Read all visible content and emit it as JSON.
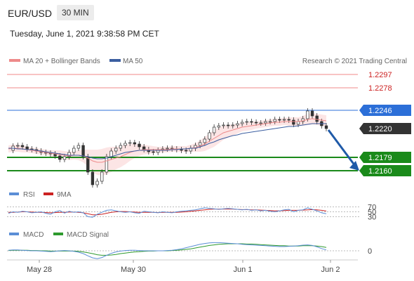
{
  "header": {
    "pair": "EUR/USD",
    "timeframe": "30 MIN",
    "timestamp": "Tuesday, June 1, 2021 9:38:58 PM CET"
  },
  "colors": {
    "ma20": "#ee8a8a",
    "ma50": "#3b5ea0",
    "band_fill": "#fbdede",
    "resistance": "#f08888",
    "resistance_label": "#cc2222",
    "pivot": "#2c6fd8",
    "support": "#1a8a1a",
    "arrow": "#1f5aa8",
    "candle": "#333333",
    "rsi": "#5b8ed6",
    "rsi_ma": "#cc2222",
    "macd": "#5b8ed6",
    "macd_signal": "#2e9a2e"
  },
  "chart_data": [
    {
      "type": "candlestick",
      "legend": [
        "MA 20 + Bollinger Bands",
        "MA 50"
      ],
      "legend_position": "top-left",
      "watermark": "Research © 2021 Trading Central",
      "x_ticks": [
        "May 28",
        "May 30",
        "Jun 1",
        "Jun 2"
      ],
      "ylim": [
        1.2145,
        1.2305
      ],
      "levels": [
        {
          "name": "resistance",
          "value": 1.2297,
          "label": "1.2297"
        },
        {
          "name": "resistance",
          "value": 1.2278,
          "label": "1.2278"
        },
        {
          "name": "pivot",
          "value": 1.2246,
          "label": "1.2246"
        },
        {
          "name": "last",
          "value": 1.222,
          "label": "1.2220"
        },
        {
          "name": "support",
          "value": 1.2179,
          "label": "1.2179"
        },
        {
          "name": "support",
          "value": 1.216,
          "label": "1.2160"
        }
      ],
      "close_path": [
        1.2189,
        1.2195,
        1.2196,
        1.2194,
        1.2191,
        1.219,
        1.2188,
        1.2186,
        1.2185,
        1.2184,
        1.2181,
        1.2176,
        1.218,
        1.2186,
        1.2192,
        1.2196,
        1.218,
        1.2158,
        1.214,
        1.2145,
        1.2158,
        1.218,
        1.2188,
        1.2192,
        1.2196,
        1.2199,
        1.22,
        1.2198,
        1.2194,
        1.219,
        1.2187,
        1.2186,
        1.2189,
        1.2191,
        1.2192,
        1.2191,
        1.219,
        1.2189,
        1.2188,
        1.2192,
        1.2196,
        1.22,
        1.2205,
        1.2214,
        1.2222,
        1.2224,
        1.2225,
        1.2224,
        1.2225,
        1.2227,
        1.2229,
        1.223,
        1.2229,
        1.2228,
        1.2228,
        1.223,
        1.223,
        1.2233,
        1.2232,
        1.2233,
        1.2232,
        1.2226,
        1.223,
        1.2234,
        1.2245,
        1.2238,
        1.223,
        1.2224,
        1.222
      ],
      "ma20_path": [
        1.2191,
        1.2192,
        1.2192,
        1.2191,
        1.219,
        1.2189,
        1.2188,
        1.2187,
        1.2186,
        1.2185,
        1.2184,
        1.2183,
        1.2182,
        1.2181,
        1.2182,
        1.2182,
        1.2181,
        1.2178,
        1.2174,
        1.2172,
        1.2172,
        1.2174,
        1.2176,
        1.2178,
        1.218,
        1.2183,
        1.2186,
        1.2188,
        1.2189,
        1.219,
        1.219,
        1.219,
        1.219,
        1.219,
        1.219,
        1.2191,
        1.2191,
        1.2191,
        1.2191,
        1.2192,
        1.2193,
        1.2195,
        1.2198,
        1.2202,
        1.2206,
        1.221,
        1.2214,
        1.2216,
        1.2218,
        1.222,
        1.2222,
        1.2223,
        1.2224,
        1.2225,
        1.2226,
        1.2227,
        1.2228,
        1.2229,
        1.2229,
        1.223,
        1.223,
        1.223,
        1.223,
        1.2231,
        1.2233,
        1.2234,
        1.2233,
        1.2232,
        1.2231
      ],
      "band_width_path": [
        5,
        5,
        5,
        5,
        4,
        4,
        4,
        4,
        4,
        4,
        5,
        6,
        6,
        6,
        6,
        7,
        9,
        12,
        16,
        18,
        19,
        19,
        18,
        16,
        15,
        14,
        12,
        10,
        8,
        7,
        6,
        5,
        4,
        4,
        4,
        4,
        4,
        4,
        4,
        5,
        6,
        8,
        10,
        11,
        12,
        11,
        10,
        9,
        8,
        7,
        6,
        6,
        6,
        5,
        5,
        5,
        5,
        5,
        5,
        5,
        6,
        6,
        6,
        7,
        8,
        8,
        8,
        8,
        8
      ],
      "ma50_path": [
        1.2192,
        1.2192,
        1.2191,
        1.2191,
        1.219,
        1.219,
        1.2189,
        1.2188,
        1.2187,
        1.2186,
        1.2185,
        1.2184,
        1.2183,
        1.2182,
        1.2182,
        1.2182,
        1.2181,
        1.218,
        1.2178,
        1.2177,
        1.2177,
        1.2178,
        1.218,
        1.2182,
        1.2184,
        1.2186,
        1.2187,
        1.2188,
        1.2189,
        1.2189,
        1.2189,
        1.2189,
        1.2189,
        1.2189,
        1.2189,
        1.219,
        1.219,
        1.2191,
        1.2191,
        1.2192,
        1.2192,
        1.2194,
        1.2196,
        1.2199,
        1.2201,
        1.2204,
        1.2206,
        1.2208,
        1.221,
        1.2211,
        1.2213,
        1.2214,
        1.2215,
        1.2216,
        1.2217,
        1.2218,
        1.2219,
        1.222,
        1.2221,
        1.2222,
        1.2223,
        1.2223,
        1.2224,
        1.2225,
        1.2226,
        1.2227,
        1.2227,
        1.2227,
        1.2227
      ]
    },
    {
      "type": "line",
      "legend": [
        "RSI",
        "9MA"
      ],
      "levels": [
        "70",
        "50",
        "30"
      ],
      "rsi_path": [
        44,
        50,
        48,
        52,
        50,
        46,
        48,
        50,
        44,
        40,
        50,
        55,
        45,
        52,
        48,
        50,
        46,
        30,
        28,
        40,
        48,
        56,
        58,
        54,
        50,
        48,
        50,
        46,
        44,
        52,
        50,
        48,
        46,
        50,
        48,
        46,
        50,
        52,
        54,
        56,
        58,
        62,
        66,
        64,
        62,
        60,
        62,
        64,
        62,
        60,
        58,
        60,
        56,
        58,
        54,
        56,
        52,
        50,
        54,
        58,
        60,
        50,
        56,
        58,
        66,
        60,
        54,
        46,
        42
      ],
      "ma_path": [
        48,
        48,
        49,
        50,
        50,
        49,
        48,
        48,
        47,
        46,
        47,
        48,
        48,
        49,
        49,
        48,
        46,
        42,
        38,
        38,
        40,
        44,
        48,
        50,
        51,
        51,
        50,
        49,
        48,
        48,
        48,
        48,
        47,
        48,
        48,
        48,
        48,
        49,
        50,
        52,
        54,
        56,
        58,
        60,
        61,
        61,
        61,
        61,
        61,
        60,
        59,
        59,
        58,
        58,
        57,
        56,
        55,
        54,
        54,
        55,
        56,
        56,
        56,
        57,
        58,
        59,
        58,
        56,
        53
      ]
    },
    {
      "type": "line",
      "legend": [
        "MACD",
        "MACD Signal"
      ],
      "levels": [
        "0"
      ],
      "macd_path": [
        0.2,
        0.3,
        0.3,
        0.2,
        0.1,
        0.0,
        0.0,
        -0.1,
        -0.2,
        -0.3,
        -0.2,
        0.0,
        0.1,
        0.0,
        -0.2,
        -0.5,
        -1.0,
        -1.8,
        -2.5,
        -2.8,
        -2.4,
        -1.6,
        -0.9,
        -0.4,
        -0.1,
        0.1,
        0.2,
        0.2,
        0.1,
        0.0,
        0.0,
        0.0,
        0.0,
        0.0,
        0.1,
        0.2,
        0.4,
        0.7,
        1.1,
        1.5,
        1.9,
        2.3,
        2.6,
        2.8,
        2.9,
        2.9,
        2.8,
        2.7,
        2.6,
        2.5,
        2.3,
        2.2,
        2.1,
        2.0,
        1.9,
        1.8,
        1.7,
        1.6,
        1.5,
        1.5,
        1.6,
        1.7,
        1.8,
        2.0,
        2.1,
        1.9,
        1.4,
        0.8,
        0.3
      ],
      "signal_path": [
        0.1,
        0.2,
        0.2,
        0.2,
        0.2,
        0.1,
        0.1,
        0.0,
        0.0,
        -0.1,
        -0.1,
        -0.1,
        -0.1,
        -0.1,
        -0.1,
        -0.2,
        -0.4,
        -0.7,
        -1.0,
        -1.4,
        -1.6,
        -1.6,
        -1.5,
        -1.3,
        -1.0,
        -0.8,
        -0.6,
        -0.4,
        -0.3,
        -0.2,
        -0.1,
        -0.1,
        0.0,
        0.0,
        0.0,
        0.1,
        0.2,
        0.3,
        0.5,
        0.7,
        1.0,
        1.3,
        1.6,
        1.9,
        2.1,
        2.3,
        2.4,
        2.5,
        2.5,
        2.5,
        2.5,
        2.4,
        2.4,
        2.3,
        2.2,
        2.1,
        2.0,
        1.9,
        1.8,
        1.8,
        1.7,
        1.7,
        1.7,
        1.8,
        1.8,
        1.8,
        1.7,
        1.5,
        1.2
      ]
    }
  ]
}
